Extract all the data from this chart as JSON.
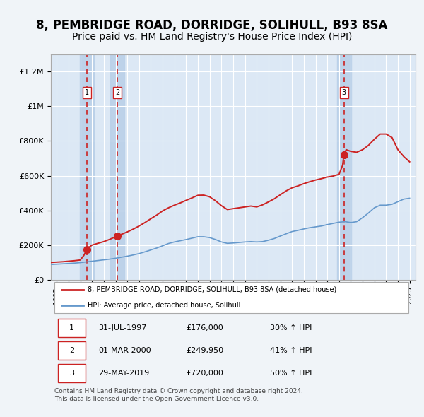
{
  "title": "8, PEMBRIDGE ROAD, DORRIDGE, SOLIHULL, B93 8SA",
  "subtitle": "Price paid vs. HM Land Registry's House Price Index (HPI)",
  "title_fontsize": 12,
  "subtitle_fontsize": 10,
  "bg_color": "#f0f4f8",
  "plot_bg_color": "#dce8f5",
  "grid_color": "#ffffff",
  "ylim": [
    0,
    1300000
  ],
  "yticks": [
    0,
    200000,
    400000,
    600000,
    800000,
    1000000,
    1200000
  ],
  "ytick_labels": [
    "£0",
    "£200K",
    "£400K",
    "£600K",
    "£800K",
    "£1M",
    "£1.2M"
  ],
  "xlim_start": 1994.5,
  "xlim_end": 2025.5,
  "xticks": [
    1995,
    1996,
    1997,
    1998,
    1999,
    2000,
    2001,
    2002,
    2003,
    2004,
    2005,
    2006,
    2007,
    2008,
    2009,
    2010,
    2011,
    2012,
    2013,
    2014,
    2015,
    2016,
    2017,
    2018,
    2019,
    2020,
    2021,
    2022,
    2023,
    2024,
    2025
  ],
  "sale_dates": [
    1997.57,
    2000.16,
    2019.41
  ],
  "sale_prices": [
    176000,
    249950,
    720000
  ],
  "sale_labels": [
    "1",
    "2",
    "3"
  ],
  "hpi_line_color": "#6699cc",
  "price_line_color": "#cc2222",
  "dashed_line_color": "#cc2222",
  "legend_label_red": "8, PEMBRIDGE ROAD, DORRIDGE, SOLIHULL, B93 8SA (detached house)",
  "legend_label_blue": "HPI: Average price, detached house, Solihull",
  "table_entries": [
    {
      "num": "1",
      "date": "31-JUL-1997",
      "price": "£176,000",
      "hpi": "30% ↑ HPI"
    },
    {
      "num": "2",
      "date": "01-MAR-2000",
      "price": "£249,950",
      "hpi": "41% ↑ HPI"
    },
    {
      "num": "3",
      "date": "29-MAY-2019",
      "price": "£720,000",
      "hpi": "50% ↑ HPI"
    }
  ],
  "footnote": "Contains HM Land Registry data © Crown copyright and database right 2024.\nThis data is licensed under the Open Government Licence v3.0.",
  "hpi_years": [
    1994.5,
    1995.0,
    1995.5,
    1996.0,
    1996.5,
    1997.0,
    1997.5,
    1998.0,
    1998.5,
    1999.0,
    1999.5,
    2000.0,
    2000.5,
    2001.0,
    2001.5,
    2002.0,
    2002.5,
    2003.0,
    2003.5,
    2004.0,
    2004.5,
    2005.0,
    2005.5,
    2006.0,
    2006.5,
    2007.0,
    2007.5,
    2008.0,
    2008.5,
    2009.0,
    2009.5,
    2010.0,
    2010.5,
    2011.0,
    2011.5,
    2012.0,
    2012.5,
    2013.0,
    2013.5,
    2014.0,
    2014.5,
    2015.0,
    2015.5,
    2016.0,
    2016.5,
    2017.0,
    2017.5,
    2018.0,
    2018.5,
    2019.0,
    2019.5,
    2020.0,
    2020.5,
    2021.0,
    2021.5,
    2022.0,
    2022.5,
    2023.0,
    2023.5,
    2024.0,
    2024.5,
    2025.0
  ],
  "hpi_values": [
    88000,
    90000,
    92000,
    94000,
    96000,
    99000,
    103000,
    107000,
    111000,
    115000,
    119000,
    124000,
    130000,
    136000,
    143000,
    151000,
    161000,
    172000,
    183000,
    196000,
    209000,
    218000,
    225000,
    232000,
    240000,
    248000,
    248000,
    243000,
    232000,
    218000,
    210000,
    212000,
    215000,
    218000,
    220000,
    218000,
    220000,
    228000,
    238000,
    252000,
    265000,
    278000,
    285000,
    293000,
    300000,
    305000,
    310000,
    318000,
    325000,
    332000,
    335000,
    330000,
    335000,
    358000,
    385000,
    415000,
    430000,
    430000,
    435000,
    450000,
    465000,
    470000
  ],
  "price_years": [
    1994.5,
    1995.0,
    1995.5,
    1996.0,
    1996.5,
    1997.0,
    1997.3,
    1997.57,
    1997.8,
    1998.0,
    1998.5,
    1999.0,
    1999.5,
    2000.0,
    2000.16,
    2000.5,
    2001.0,
    2001.5,
    2002.0,
    2002.5,
    2003.0,
    2003.5,
    2004.0,
    2004.5,
    2005.0,
    2005.5,
    2006.0,
    2006.5,
    2007.0,
    2007.5,
    2008.0,
    2008.5,
    2009.0,
    2009.5,
    2010.0,
    2010.5,
    2011.0,
    2011.5,
    2012.0,
    2012.5,
    2013.0,
    2013.5,
    2014.0,
    2014.5,
    2015.0,
    2015.5,
    2016.0,
    2016.5,
    2017.0,
    2017.5,
    2018.0,
    2018.5,
    2019.0,
    2019.3,
    2019.41,
    2019.6,
    2020.0,
    2020.5,
    2021.0,
    2021.5,
    2022.0,
    2022.5,
    2023.0,
    2023.5,
    2024.0,
    2024.5,
    2025.0
  ],
  "price_values": [
    100000,
    102000,
    104000,
    107000,
    110000,
    114000,
    140000,
    176000,
    190000,
    200000,
    210000,
    220000,
    233000,
    248000,
    249950,
    262000,
    276000,
    292000,
    310000,
    330000,
    352000,
    373000,
    397000,
    415000,
    430000,
    443000,
    458000,
    472000,
    487000,
    488000,
    478000,
    455000,
    427000,
    405000,
    410000,
    415000,
    420000,
    425000,
    420000,
    432000,
    449000,
    467000,
    490000,
    512000,
    530000,
    541000,
    554000,
    565000,
    575000,
    583000,
    592000,
    598000,
    608000,
    660000,
    720000,
    750000,
    740000,
    735000,
    750000,
    775000,
    810000,
    840000,
    840000,
    820000,
    750000,
    710000,
    680000
  ]
}
